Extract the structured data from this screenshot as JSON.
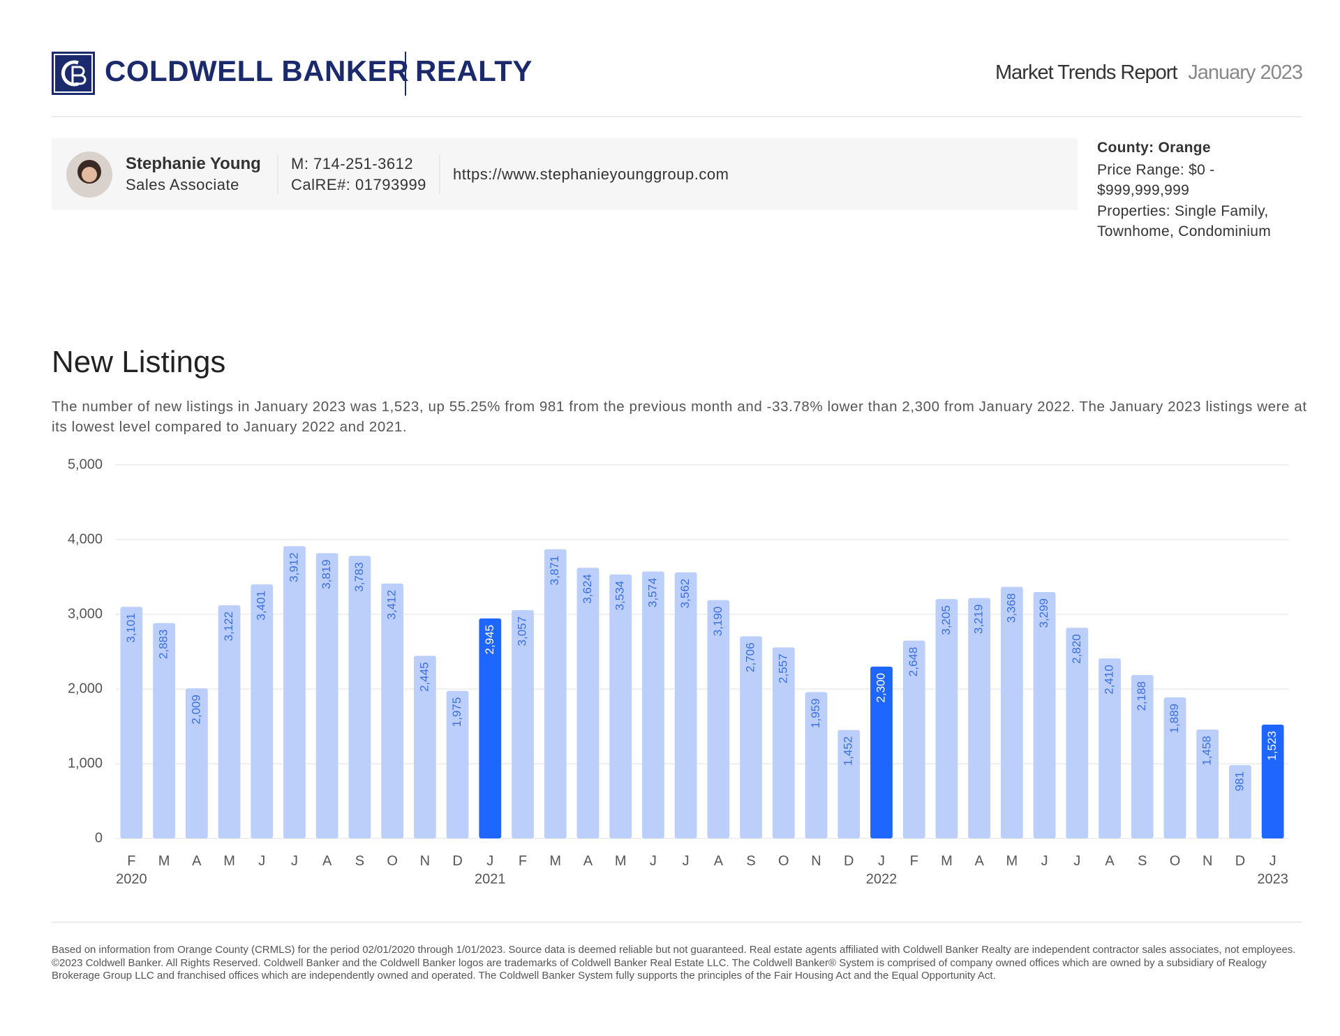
{
  "header": {
    "brand": "COLDWELL BANKER",
    "division": "REALTY",
    "report": "Market Trends Report",
    "period": "January 2023"
  },
  "agent": {
    "name": "Stephanie Young",
    "role": "Sales Associate",
    "phone": "M: 714-251-3612",
    "license": "CalRE#: 01793999",
    "website": "https://www.stephanieyounggroup.com"
  },
  "filters": {
    "county": "County: Orange",
    "price_range": "Price Range: $0 - $999,999,999",
    "properties": "Properties: Single Family, Townhome, Condominium"
  },
  "chart_data": {
    "type": "bar",
    "title": "New Listings",
    "subtitle": "The number of new listings in January 2023 was 1,523, up 55.25% from 981 from the previous month and -33.78% lower than 2,300 from January 2022. The January 2023 listings were at its lowest level compared to January 2022 and 2021.",
    "categories": [
      "F",
      "M",
      "A",
      "M",
      "J",
      "J",
      "A",
      "S",
      "O",
      "N",
      "D",
      "J",
      "F",
      "M",
      "A",
      "M",
      "J",
      "J",
      "A",
      "S",
      "O",
      "N",
      "D",
      "J",
      "F",
      "M",
      "A",
      "M",
      "J",
      "J",
      "A",
      "S",
      "O",
      "N",
      "D",
      "J"
    ],
    "year_labels": [
      "2020",
      null,
      null,
      null,
      null,
      null,
      null,
      null,
      null,
      null,
      null,
      "2021",
      null,
      null,
      null,
      null,
      null,
      null,
      null,
      null,
      null,
      null,
      null,
      "2022",
      null,
      null,
      null,
      null,
      null,
      null,
      null,
      null,
      null,
      null,
      null,
      "2023"
    ],
    "values": [
      3101,
      2883,
      2009,
      3122,
      3401,
      3912,
      3819,
      3783,
      3412,
      2445,
      1975,
      2945,
      3057,
      3871,
      3624,
      3534,
      3574,
      3562,
      3190,
      2706,
      2557,
      1959,
      1452,
      2300,
      2648,
      3205,
      3219,
      3368,
      3299,
      2820,
      2410,
      2188,
      1889,
      1458,
      981,
      1523
    ],
    "value_labels": [
      "3,101",
      "2,883",
      "2,009",
      "3,122",
      "3,401",
      "3,912",
      "3,819",
      "3,783",
      "3,412",
      "2,445",
      "1,975",
      "2,945",
      "3,057",
      "3,871",
      "3,624",
      "3,534",
      "3,574",
      "3,562",
      "3,190",
      "2,706",
      "2,557",
      "1,959",
      "1,452",
      "2,300",
      "2,648",
      "3,205",
      "3,219",
      "3,368",
      "3,299",
      "2,820",
      "2,410",
      "2,188",
      "1,889",
      "1,458",
      "981",
      "1,523"
    ],
    "colors": [
      "#bccffb",
      "#bccffb",
      "#bccffb",
      "#bccffb",
      "#bccffb",
      "#bccffb",
      "#bccffb",
      "#bccffb",
      "#bccffb",
      "#bccffb",
      "#bccffb",
      "#1f66ff",
      "#bccffb",
      "#bccffb",
      "#bccffb",
      "#bccffb",
      "#bccffb",
      "#bccffb",
      "#bccffb",
      "#bccffb",
      "#bccffb",
      "#bccffb",
      "#bccffb",
      "#1f66ff",
      "#bccffb",
      "#bccffb",
      "#bccffb",
      "#bccffb",
      "#bccffb",
      "#bccffb",
      "#bccffb",
      "#bccffb",
      "#bccffb",
      "#bccffb",
      "#bccffb",
      "#1f66ff"
    ],
    "ylim": [
      0,
      5000
    ],
    "yticks": [
      0,
      {
        "value": 1000,
        "label": "1,000"
      },
      {
        "value": 2000,
        "label": "2,000"
      },
      {
        "value": 3000,
        "label": "3,000"
      },
      {
        "value": 4000,
        "label": "4,000"
      },
      {
        "value": 5000,
        "label": "5,000"
      }
    ],
    "grid": true
  },
  "footer": {
    "disclaimer": "Based on information from Orange County (CRMLS) for the period 02/01/2020 through 1/01/2023. Source data is deemed reliable but not guaranteed. Real estate agents affiliated with Coldwell Banker Realty are independent contractor sales associates, not employees. ©2023 Coldwell Banker. All Rights Reserved. Coldwell Banker and the Coldwell Banker logos are trademarks of Coldwell Banker Real Estate LLC. The Coldwell Banker® System is comprised of company owned offices which are owned by a subsidiary of Realogy Brokerage Group LLC and franchised offices which are independently owned and operated. The Coldwell Banker System fully supports the principles of the Fair Housing Act and the Equal Opportunity Act."
  }
}
